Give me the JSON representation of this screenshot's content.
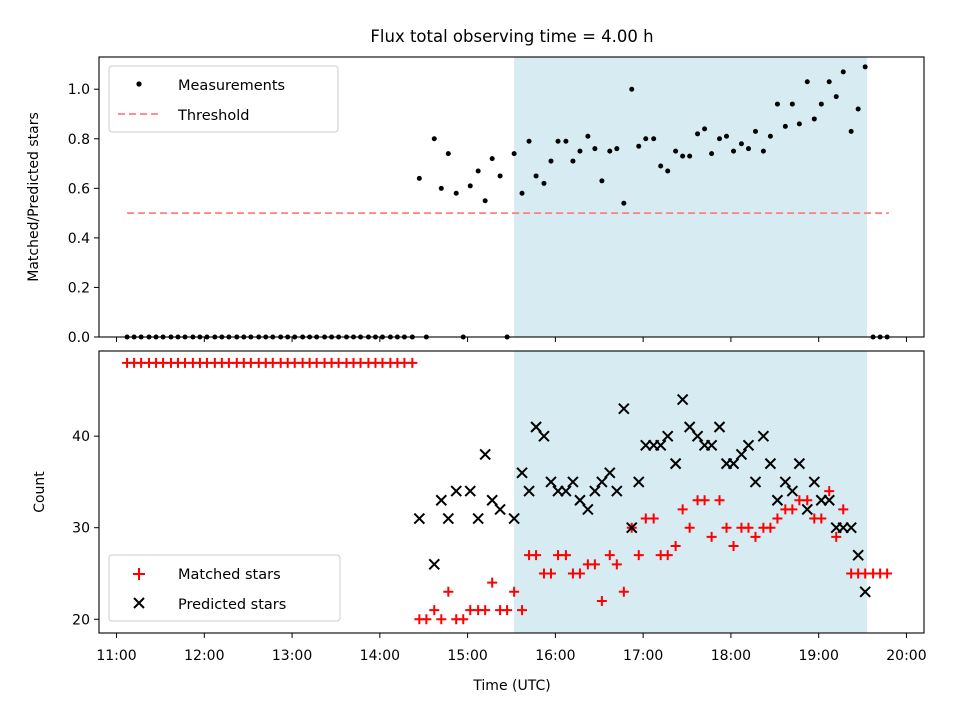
{
  "figure_title": "Flux total observing time = 4.00 h",
  "colors": {
    "measurements": "#000000",
    "threshold": "#ff7f7f",
    "matched": "#ff0000",
    "predicted": "#000000",
    "shade": "#add8e6"
  },
  "chart_data": [
    {
      "type": "scatter",
      "title": "Flux total observing time = 4.00 h",
      "xlabel": "",
      "ylabel": "Matched/Predicted stars",
      "x_unit": "hours (UTC)",
      "xlim": [
        10.8,
        20.2
      ],
      "ylim": [
        0,
        1.13
      ],
      "yticks": [
        0.0,
        0.2,
        0.4,
        0.6,
        0.8,
        1.0
      ],
      "ytick_labels": [
        "0.0",
        "0.2",
        "0.4",
        "0.6",
        "0.8",
        "1.0"
      ],
      "legend": {
        "position": "top-left",
        "entries": [
          "Measurements",
          "Threshold"
        ]
      },
      "shaded_region": [
        15.53,
        19.55
      ],
      "threshold": {
        "name": "Threshold",
        "y": 0.5,
        "x_range": [
          11.12,
          19.8
        ]
      },
      "series": [
        {
          "name": "Measurements",
          "x": [
            11.12,
            11.2,
            11.28,
            11.37,
            11.45,
            11.53,
            11.62,
            11.7,
            11.78,
            11.87,
            11.95,
            12.03,
            12.12,
            12.2,
            12.28,
            12.37,
            12.45,
            12.53,
            12.62,
            12.7,
            12.78,
            12.87,
            12.95,
            13.03,
            13.12,
            13.2,
            13.28,
            13.37,
            13.45,
            13.53,
            13.62,
            13.7,
            13.78,
            13.87,
            13.95,
            14.03,
            14.12,
            14.2,
            14.28,
            14.37,
            14.45,
            14.53,
            14.62,
            14.7,
            14.78,
            14.87,
            14.95,
            15.03,
            15.12,
            15.2,
            15.28,
            15.37,
            15.45,
            15.53,
            15.62,
            15.7,
            15.78,
            15.87,
            15.95,
            16.03,
            16.12,
            16.2,
            16.28,
            16.37,
            16.45,
            16.53,
            16.62,
            16.7,
            16.78,
            16.87,
            16.95,
            17.03,
            17.12,
            17.2,
            17.28,
            17.37,
            17.45,
            17.53,
            17.62,
            17.7,
            17.78,
            17.87,
            17.95,
            18.03,
            18.12,
            18.2,
            18.28,
            18.37,
            18.45,
            18.53,
            18.62,
            18.7,
            18.78,
            18.87,
            18.95,
            19.03,
            19.12,
            19.2,
            19.28,
            19.37,
            19.45,
            19.53,
            19.62,
            19.7,
            19.78
          ],
          "values": [
            0,
            0,
            0,
            0,
            0,
            0,
            0,
            0,
            0,
            0,
            0,
            0,
            0,
            0,
            0,
            0,
            0,
            0,
            0,
            0,
            0,
            0,
            0,
            0,
            0,
            0,
            0,
            0,
            0,
            0,
            0,
            0,
            0,
            0,
            0,
            0,
            0,
            0,
            0,
            0,
            0.64,
            0,
            0.8,
            0.6,
            0.74,
            0.58,
            0,
            0.61,
            0.67,
            0.55,
            0.72,
            0.65,
            0,
            0.74,
            0.58,
            0.79,
            0.65,
            0.62,
            0.71,
            0.79,
            0.79,
            0.71,
            0.75,
            0.81,
            0.76,
            0.63,
            0.75,
            0.76,
            0.54,
            1.0,
            0.77,
            0.8,
            0.8,
            0.69,
            0.67,
            0.75,
            0.73,
            0.73,
            0.82,
            0.84,
            0.74,
            0.8,
            0.81,
            0.75,
            0.78,
            0.76,
            0.83,
            0.75,
            0.81,
            0.94,
            0.85,
            0.94,
            0.86,
            1.03,
            0.88,
            0.94,
            1.03,
            0.97,
            1.07,
            0.83,
            0.92,
            1.09,
            0,
            0,
            0
          ]
        }
      ]
    },
    {
      "type": "scatter",
      "title": "",
      "xlabel": "Time (UTC)",
      "ylabel": "Count",
      "x_unit": "hours (UTC)",
      "xlim": [
        10.8,
        20.2
      ],
      "ylim": [
        18.5,
        49.3
      ],
      "xticks": [
        11,
        12,
        13,
        14,
        15,
        16,
        17,
        18,
        19,
        20
      ],
      "xtick_labels": [
        "11:00",
        "12:00",
        "13:00",
        "14:00",
        "15:00",
        "16:00",
        "17:00",
        "18:00",
        "19:00",
        "20:00"
      ],
      "yticks": [
        20,
        30,
        40
      ],
      "ytick_labels": [
        "20",
        "30",
        "40"
      ],
      "legend": {
        "position": "bottom-left",
        "entries": [
          "Matched stars",
          "Predicted stars"
        ]
      },
      "shaded_region": [
        15.53,
        19.55
      ],
      "series": [
        {
          "name": "Matched stars",
          "x": [
            11.12,
            11.2,
            11.28,
            11.37,
            11.45,
            11.53,
            11.62,
            11.7,
            11.78,
            11.87,
            11.95,
            12.03,
            12.12,
            12.2,
            12.28,
            12.37,
            12.45,
            12.53,
            12.62,
            12.7,
            12.78,
            12.87,
            12.95,
            13.03,
            13.12,
            13.2,
            13.28,
            13.37,
            13.45,
            13.53,
            13.62,
            13.7,
            13.78,
            13.87,
            13.95,
            14.03,
            14.12,
            14.2,
            14.28,
            14.37,
            14.45,
            14.53,
            14.62,
            14.7,
            14.78,
            14.87,
            14.95,
            15.03,
            15.12,
            15.2,
            15.28,
            15.37,
            15.45,
            15.53,
            15.62,
            15.7,
            15.78,
            15.87,
            15.95,
            16.03,
            16.12,
            16.2,
            16.28,
            16.37,
            16.45,
            16.53,
            16.62,
            16.7,
            16.78,
            16.87,
            16.95,
            17.03,
            17.12,
            17.2,
            17.28,
            17.37,
            17.45,
            17.53,
            17.62,
            17.7,
            17.78,
            17.87,
            17.95,
            18.03,
            18.12,
            18.2,
            18.28,
            18.37,
            18.45,
            18.53,
            18.62,
            18.7,
            18.78,
            18.87,
            18.95,
            19.03,
            19.12,
            19.2,
            19.28,
            19.37,
            19.45,
            19.53,
            19.62,
            19.7,
            19.78
          ],
          "values": [
            48,
            48,
            48,
            48,
            48,
            48,
            48,
            48,
            48,
            48,
            48,
            48,
            48,
            48,
            48,
            48,
            48,
            48,
            48,
            48,
            48,
            48,
            48,
            48,
            48,
            48,
            48,
            48,
            48,
            48,
            48,
            48,
            48,
            48,
            48,
            48,
            48,
            48,
            48,
            48,
            20,
            20,
            21,
            20,
            23,
            20,
            20,
            21,
            21,
            21,
            24,
            21,
            21,
            23,
            21,
            27,
            27,
            25,
            25,
            27,
            27,
            25,
            25,
            26,
            26,
            22,
            27,
            26,
            23,
            30,
            27,
            31,
            31,
            27,
            27,
            28,
            32,
            30,
            33,
            33,
            29,
            33,
            30,
            28,
            30,
            30,
            29,
            30,
            30,
            31,
            32,
            32,
            33,
            33,
            31,
            31,
            34,
            29,
            32,
            25,
            25,
            25,
            25,
            25,
            25
          ]
        },
        {
          "name": "Predicted stars",
          "x": [
            14.45,
            14.62,
            14.7,
            14.78,
            14.87,
            15.03,
            15.12,
            15.2,
            15.28,
            15.37,
            15.53,
            15.62,
            15.7,
            15.78,
            15.87,
            15.95,
            16.03,
            16.12,
            16.2,
            16.28,
            16.37,
            16.45,
            16.53,
            16.62,
            16.7,
            16.78,
            16.87,
            16.95,
            17.03,
            17.12,
            17.2,
            17.28,
            17.37,
            17.45,
            17.53,
            17.62,
            17.7,
            17.78,
            17.87,
            17.95,
            18.03,
            18.12,
            18.2,
            18.28,
            18.37,
            18.45,
            18.53,
            18.62,
            18.7,
            18.78,
            18.87,
            18.95,
            19.03,
            19.12,
            19.2,
            19.28,
            19.37,
            19.45,
            19.53
          ],
          "values": [
            31,
            26,
            33,
            31,
            34,
            34,
            31,
            38,
            33,
            32,
            31,
            36,
            34,
            41,
            40,
            35,
            34,
            34,
            35,
            33,
            32,
            34,
            35,
            36,
            34,
            43,
            30,
            35,
            39,
            39,
            39,
            40,
            37,
            44,
            41,
            40,
            39,
            39,
            41,
            37,
            37,
            38,
            39,
            35,
            40,
            37,
            33,
            35,
            34,
            37,
            32,
            35,
            33,
            33,
            30,
            30,
            30,
            27,
            23
          ]
        }
      ]
    }
  ]
}
